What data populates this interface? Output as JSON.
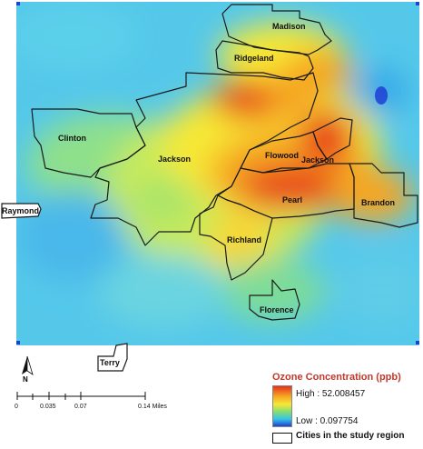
{
  "cities": [
    {
      "id": "madison",
      "label": "Madison"
    },
    {
      "id": "ridgeland",
      "label": "Ridgeland"
    },
    {
      "id": "clinton",
      "label": "Clinton"
    },
    {
      "id": "jackson",
      "label": "Jackson"
    },
    {
      "id": "flowood",
      "label": "Flowood"
    },
    {
      "id": "jackson-east",
      "label": "Jackson"
    },
    {
      "id": "pearl",
      "label": "Pearl"
    },
    {
      "id": "brandon",
      "label": "Brandon"
    },
    {
      "id": "richland",
      "label": "Richland"
    },
    {
      "id": "raymond",
      "label": "Raymond"
    },
    {
      "id": "florence",
      "label": "Florence"
    },
    {
      "id": "terry",
      "label": "Terry"
    }
  ],
  "legend": {
    "title": "Ozone Concentration (ppb)",
    "high_label": "High : 52.008457",
    "low_label": "Low : 0.097754",
    "boundary_label": "Cities in the study region"
  },
  "scale_bar": {
    "ticks": [
      "0",
      "0.035",
      "0.07",
      "0.14 Miles"
    ]
  },
  "north_arrow": {
    "label": "N"
  },
  "colors": {
    "high": "#e8311a",
    "mid_high": "#f5a623",
    "mid": "#f7e835",
    "mid_low": "#7ddc7a",
    "low_mid": "#36c3e8",
    "low": "#1f3fd6"
  }
}
